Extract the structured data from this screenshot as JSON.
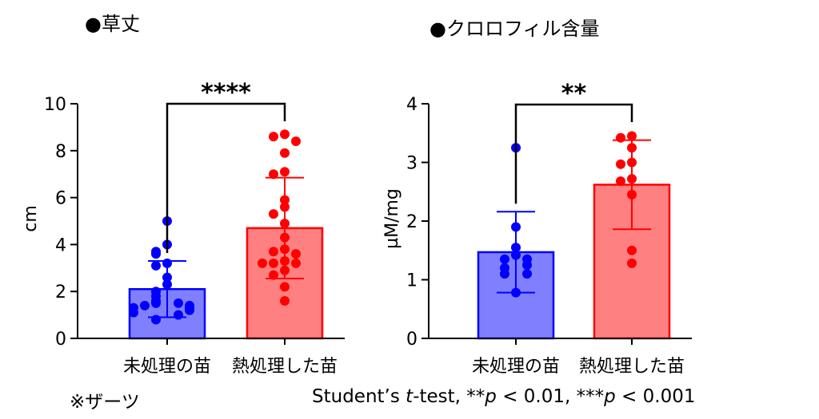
{
  "titles": {
    "left": "●草丈",
    "right": "●クロロフィル含量"
  },
  "footnotes": {
    "left": "※ザーツ",
    "right_prefix": "Student’s ",
    "right_t": "t",
    "right_mid1": "-test, **",
    "right_p1": "p",
    "right_mid2": " < 0.01, ***",
    "right_p2": "p",
    "right_mid3": " < 0.001"
  },
  "colors": {
    "untreated_fill": "#8080ff",
    "untreated_edge": "#0000ff",
    "heat_fill": "#ff8080",
    "heat_edge": "#ff0000"
  },
  "chart_data": [
    {
      "type": "bar",
      "title": "●草丈",
      "ylabel": "cm",
      "xlabel": "",
      "ylim": [
        0,
        10
      ],
      "yticks": [
        "0",
        "2",
        "4",
        "6",
        "8",
        "10"
      ],
      "categories": [
        "未処理の苗",
        "熱処理した苗"
      ],
      "means": [
        2.1,
        4.7
      ],
      "sd": [
        1.2,
        2.15
      ],
      "points": [
        [
          5.0,
          4.0,
          3.7,
          3.6,
          3.2,
          3.1,
          2.6,
          2.3,
          2.0,
          1.8,
          1.6,
          1.5,
          1.5,
          1.4,
          1.4,
          1.3,
          1.3,
          1.2,
          1.1,
          1.0,
          0.8
        ],
        [
          8.7,
          8.6,
          8.4,
          7.9,
          7.1,
          7.0,
          5.9,
          5.6,
          5.3,
          4.9,
          4.3,
          3.8,
          3.7,
          3.6,
          3.3,
          3.2,
          3.2,
          3.2,
          2.9,
          2.7,
          2.2,
          1.6
        ]
      ],
      "significance": "****"
    },
    {
      "type": "bar",
      "title": "●クロロフィル含量",
      "ylabel": "µM/mg",
      "xlabel": "",
      "ylim": [
        0,
        4
      ],
      "yticks": [
        "0",
        "1",
        "2",
        "3",
        "4"
      ],
      "categories": [
        "未処理の苗",
        "熱処理した苗"
      ],
      "means": [
        1.47,
        2.62
      ],
      "sd": [
        0.69,
        0.76
      ],
      "points": [
        [
          3.25,
          1.9,
          1.55,
          1.42,
          1.35,
          1.35,
          1.25,
          1.2,
          1.1,
          1.1,
          0.78
        ],
        [
          3.45,
          3.42,
          3.25,
          3.0,
          2.97,
          2.72,
          2.68,
          2.45,
          1.5,
          1.28
        ]
      ],
      "significance": "**"
    }
  ]
}
